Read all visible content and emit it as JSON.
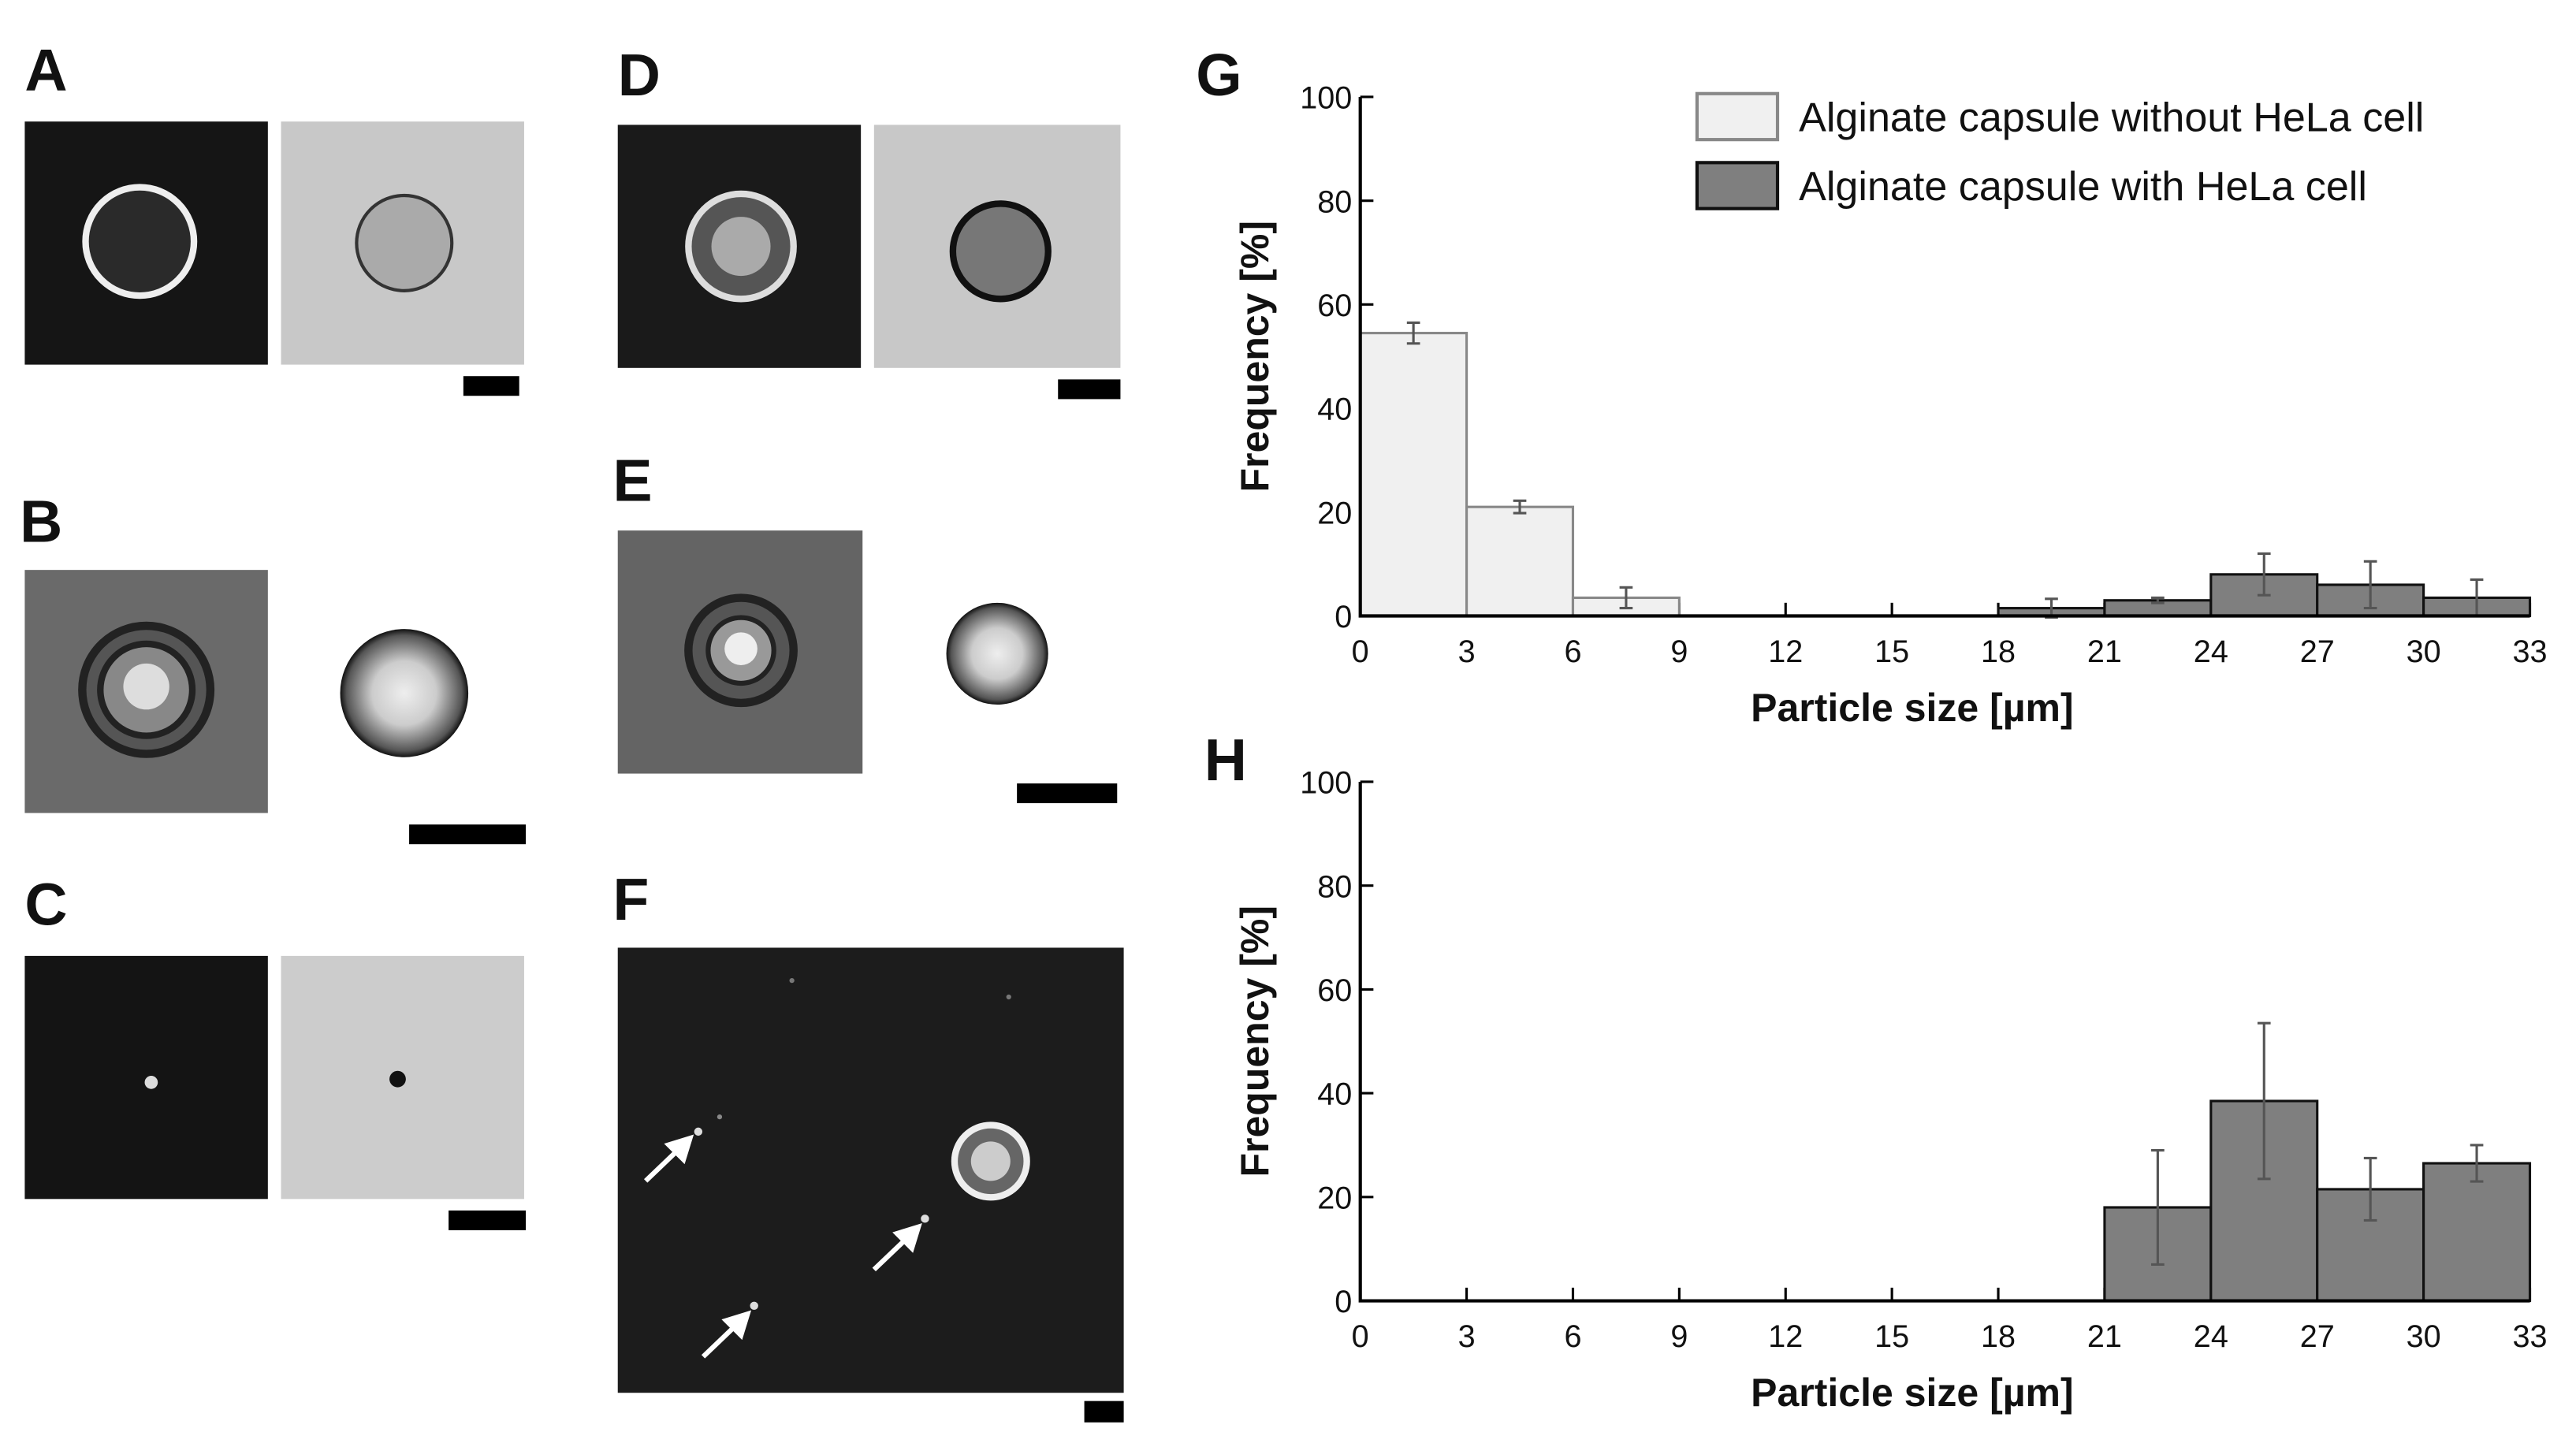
{
  "panel_labels": [
    "A",
    "B",
    "C",
    "D",
    "E",
    "F"
  ],
  "chart_data": [
    {
      "type": "histogram",
      "title": "G",
      "xlabel": "Particle size [µm]",
      "ylabel": "Frequency [%]",
      "bins": [
        0,
        3,
        6,
        9,
        12,
        15,
        18,
        21,
        24,
        27,
        30,
        33
      ],
      "xlim": [
        0,
        33
      ],
      "xticks": [
        0,
        3,
        6,
        9,
        12,
        15,
        18,
        21,
        24,
        27,
        30,
        33
      ],
      "ylim": [
        0,
        100
      ],
      "yticks": [
        0,
        20,
        40,
        60,
        80,
        100
      ],
      "legend": "upper right",
      "series": [
        {
          "name": "Alginate capsule without HeLa cell",
          "color": "#f0f0f0",
          "edgecolor": "#888888",
          "values": [
            54.5,
            21,
            3.5,
            0,
            0,
            0,
            null,
            null,
            null,
            null,
            null
          ],
          "errors": [
            2,
            1.2,
            2,
            null,
            null,
            null,
            null,
            null,
            null,
            null,
            null
          ]
        },
        {
          "name": "Alginate capsule with HeLa cell",
          "color": "#7f7f7f",
          "edgecolor": "#111111",
          "values": [
            null,
            null,
            null,
            null,
            null,
            null,
            1.5,
            3,
            8,
            6,
            3.5
          ],
          "errors": [
            null,
            null,
            null,
            null,
            null,
            null,
            1.8,
            0.5,
            4,
            4.5,
            3.5
          ]
        }
      ]
    },
    {
      "type": "histogram",
      "title": "H",
      "xlabel": "Particle size [µm]",
      "ylabel": "Frequency [%]",
      "bins": [
        0,
        3,
        6,
        9,
        12,
        15,
        18,
        21,
        24,
        27,
        30,
        33
      ],
      "xlim": [
        0,
        33
      ],
      "xticks": [
        0,
        3,
        6,
        9,
        12,
        15,
        18,
        21,
        24,
        27,
        30,
        33
      ],
      "ylim": [
        0,
        100
      ],
      "yticks": [
        0,
        20,
        40,
        60,
        80,
        100
      ],
      "series": [
        {
          "color": "#7f7f7f",
          "edgecolor": "#111111",
          "values": [
            null,
            null,
            null,
            null,
            null,
            null,
            null,
            18,
            38.5,
            21.5,
            26.5
          ],
          "errors": [
            null,
            null,
            null,
            null,
            null,
            null,
            null,
            11,
            15,
            6,
            3.5
          ]
        }
      ]
    }
  ]
}
